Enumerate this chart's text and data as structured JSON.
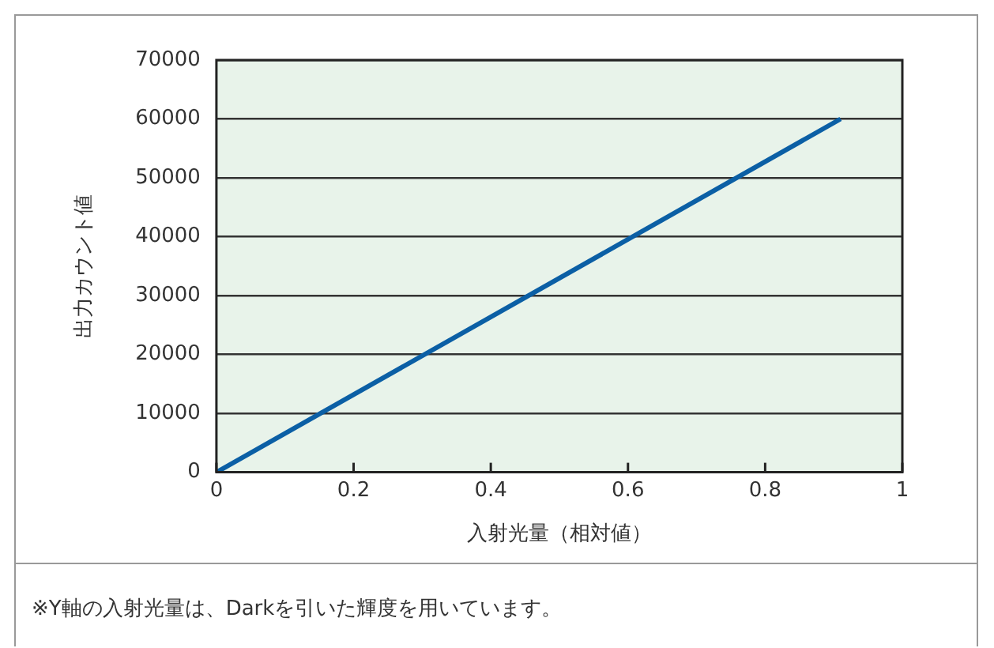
{
  "chart_data": {
    "type": "line",
    "xlabel": "入射光量（相対値）",
    "ylabel": "出力カウント値",
    "x": [
      0,
      0.91
    ],
    "series": [
      {
        "color": "#0b5fa5",
        "values": [
          0,
          60000
        ]
      }
    ],
    "xlim": [
      0,
      1
    ],
    "xticks": [
      0,
      0.2,
      0.4,
      0.6,
      0.8,
      1
    ],
    "ylim": [
      0,
      70000
    ],
    "yticks": [
      0,
      10000,
      20000,
      30000,
      40000,
      50000,
      60000,
      70000
    ],
    "grid": "y",
    "marker": "none",
    "line_style": "solid",
    "annotations": [
      "※Y軸の入射光量は、Darkを引いた輝度を用いています。"
    ]
  }
}
